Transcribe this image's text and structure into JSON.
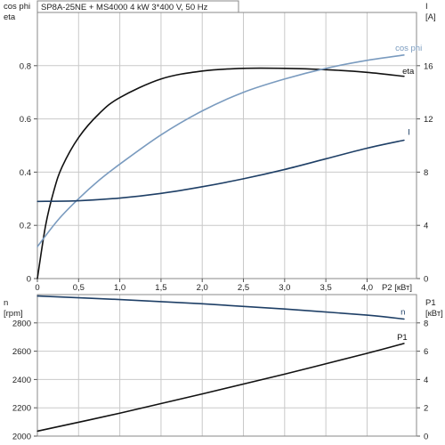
{
  "chart_data": [
    {
      "type": "line",
      "title": "SP8A-25NE + MS4000   4 kW   3*400 V, 50 Hz",
      "xlabel": "P2 [кВт]",
      "x_ticks": [
        "0",
        "0,5",
        "1,0",
        "1,5",
        "2,0",
        "2,5",
        "3,0",
        "3,5",
        "4,0"
      ],
      "xlim": [
        0,
        4.6
      ],
      "left_axis": {
        "label_lines": [
          "cos phi",
          "eta"
        ],
        "ylim": [
          0,
          1.0
        ],
        "ticks": [
          "0",
          "0.2",
          "0.4",
          "0.6",
          "0.8"
        ]
      },
      "right_axis": {
        "label_lines": [
          "I",
          "[A]"
        ],
        "ylim": [
          0,
          20
        ],
        "ticks": [
          "0",
          "4",
          "8",
          "12",
          "16"
        ]
      },
      "grid": true,
      "series": [
        {
          "name": "eta",
          "axis": "left",
          "color": "#111111",
          "label": "eta",
          "x": [
            0,
            0.1,
            0.2,
            0.3,
            0.5,
            0.75,
            1.0,
            1.5,
            2.0,
            2.5,
            3.0,
            3.5,
            4.0,
            4.45
          ],
          "y": [
            0,
            0.2,
            0.33,
            0.42,
            0.53,
            0.62,
            0.68,
            0.75,
            0.78,
            0.79,
            0.79,
            0.785,
            0.775,
            0.76
          ]
        },
        {
          "name": "cos phi",
          "axis": "left",
          "color": "#7a9bbf",
          "label": "cos phi",
          "x": [
            0,
            0.25,
            0.5,
            0.75,
            1.0,
            1.5,
            2.0,
            2.5,
            3.0,
            3.5,
            4.0,
            4.45
          ],
          "y": [
            0.12,
            0.22,
            0.3,
            0.37,
            0.43,
            0.54,
            0.63,
            0.7,
            0.75,
            0.79,
            0.82,
            0.84
          ]
        },
        {
          "name": "I",
          "axis": "right",
          "color": "#1e3f66",
          "label": "I",
          "x": [
            0,
            0.5,
            1.0,
            1.5,
            2.0,
            2.5,
            3.0,
            3.5,
            4.0,
            4.45
          ],
          "y": [
            5.8,
            5.85,
            6.05,
            6.4,
            6.9,
            7.5,
            8.2,
            9.0,
            9.8,
            10.4
          ]
        }
      ]
    },
    {
      "type": "line",
      "xlim": [
        0,
        4.6
      ],
      "left_axis": {
        "label_lines": [
          "n",
          "[rpm]"
        ],
        "ylim": [
          2000,
          3000
        ],
        "ticks": [
          "2000",
          "2200",
          "2400",
          "2600",
          "2800"
        ]
      },
      "right_axis": {
        "label_lines": [
          "P1",
          "[кВт]"
        ],
        "ylim": [
          0,
          10
        ],
        "ticks": [
          "0",
          "2",
          "4",
          "6",
          "8"
        ]
      },
      "grid": true,
      "series": [
        {
          "name": "n",
          "axis": "left",
          "color": "#1e3f66",
          "label": "n",
          "x": [
            0,
            1.0,
            2.0,
            3.0,
            4.0,
            4.45
          ],
          "y": [
            2990,
            2965,
            2935,
            2898,
            2855,
            2827
          ]
        },
        {
          "name": "P1",
          "axis": "right",
          "color": "#111111",
          "label": "P1",
          "x": [
            0,
            1.0,
            2.0,
            3.0,
            4.0,
            4.45
          ],
          "y": [
            0.35,
            1.62,
            2.98,
            4.38,
            5.85,
            6.55
          ]
        }
      ]
    }
  ]
}
